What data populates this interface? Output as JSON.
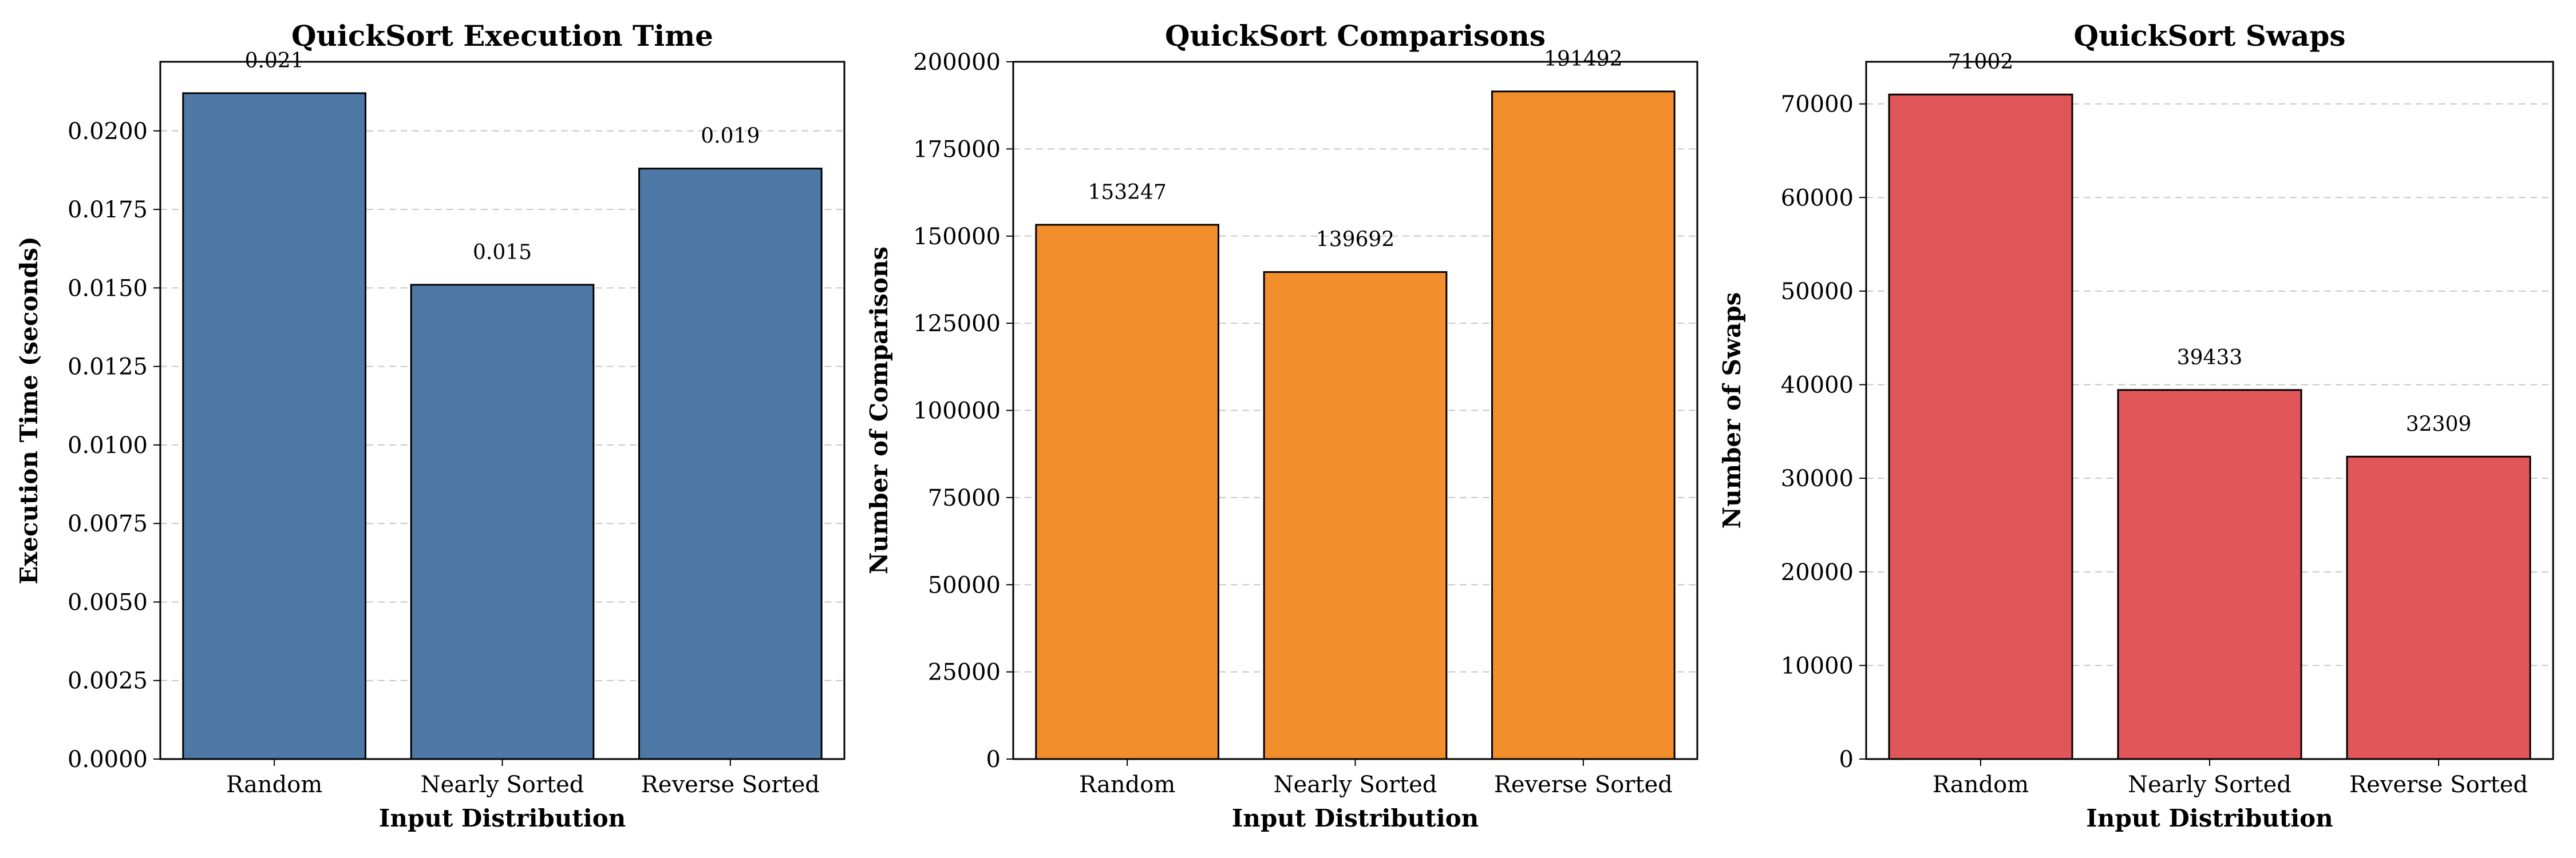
{
  "chart_data": [
    {
      "type": "bar",
      "title": "QuickSort Execution Time",
      "xlabel": "Input Distribution",
      "ylabel": "Execution Time (seconds)",
      "categories": [
        "Random",
        "Nearly Sorted",
        "Reverse Sorted"
      ],
      "values": [
        0.0212,
        0.0151,
        0.0188
      ],
      "data_labels": [
        "0.021",
        "0.015",
        "0.019"
      ],
      "ylim": [
        0,
        0.0222
      ],
      "yticks": [
        0,
        0.0025,
        0.005,
        0.0075,
        0.01,
        0.0125,
        0.015,
        0.0175,
        0.02
      ],
      "ytick_labels": [
        "0.0000",
        "0.0025",
        "0.0050",
        "0.0075",
        "0.0100",
        "0.0125",
        "0.0150",
        "0.0175",
        "0.0200"
      ],
      "color": "#4e79a7",
      "grid": "y-dashed"
    },
    {
      "type": "bar",
      "title": "QuickSort Comparisons",
      "xlabel": "Input Distribution",
      "ylabel": "Number of Comparisons",
      "categories": [
        "Random",
        "Nearly Sorted",
        "Reverse Sorted"
      ],
      "values": [
        153247,
        139692,
        191492
      ],
      "data_labels": [
        "153247",
        "139692",
        "191492"
      ],
      "ylim": [
        0,
        200000
      ],
      "yticks": [
        0,
        25000,
        50000,
        75000,
        100000,
        125000,
        150000,
        175000,
        200000
      ],
      "ytick_labels": [
        "0",
        "25000",
        "50000",
        "75000",
        "100000",
        "125000",
        "150000",
        "175000",
        "200000"
      ],
      "color": "#f28e2b",
      "grid": "y-dashed"
    },
    {
      "type": "bar",
      "title": "QuickSort Swaps",
      "xlabel": "Input Distribution",
      "ylabel": "Number of Swaps",
      "categories": [
        "Random",
        "Nearly Sorted",
        "Reverse Sorted"
      ],
      "values": [
        71002,
        39433,
        32309
      ],
      "data_labels": [
        "71002",
        "39433",
        "32309"
      ],
      "ylim": [
        0,
        74500
      ],
      "yticks": [
        0,
        10000,
        20000,
        30000,
        40000,
        50000,
        60000,
        70000
      ],
      "ytick_labels": [
        "0",
        "10000",
        "20000",
        "30000",
        "40000",
        "50000",
        "60000",
        "70000"
      ],
      "color": "#e15759",
      "grid": "y-dashed"
    }
  ]
}
